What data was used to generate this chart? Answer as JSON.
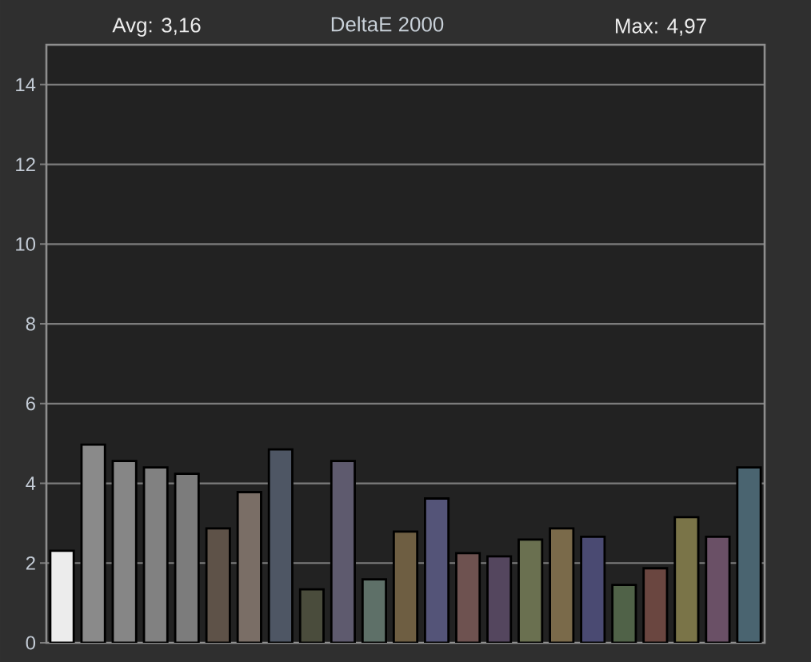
{
  "chart_data": {
    "type": "bar",
    "title": "DeltaE 2000",
    "annotations": [
      "Avg: 3,16",
      "Max: 4,97"
    ],
    "categories": [
      null,
      null,
      null,
      null,
      null,
      null,
      null,
      null,
      null,
      null,
      null,
      null,
      null,
      null,
      null,
      null,
      null,
      null,
      null,
      null,
      null,
      null,
      null
    ],
    "values": [
      2.31,
      4.97,
      4.56,
      4.4,
      4.24,
      2.87,
      3.78,
      4.85,
      1.34,
      4.56,
      1.59,
      2.79,
      3.62,
      2.25,
      2.17,
      2.59,
      2.87,
      2.66,
      1.45,
      1.87,
      3.15,
      2.66,
      4.4
    ],
    "colors": [
      "#ececec",
      "#8a8a8a",
      "#868686",
      "#818181",
      "#7c7c7c",
      "#5e5248",
      "#7a6e66",
      "#4e5664",
      "#4a4c3c",
      "#5e5a6e",
      "#5e7068",
      "#6e5e42",
      "#545478",
      "#6e5250",
      "#54465e",
      "#6a7050",
      "#7a6a4a",
      "#4a4a72",
      "#506248",
      "#6a4640",
      "#7a7448",
      "#6a5066",
      "#4a6470"
    ],
    "ylim": [
      0,
      15
    ],
    "yticks": [
      0,
      2,
      4,
      6,
      8,
      10,
      12,
      14
    ],
    "grid": "y"
  }
}
